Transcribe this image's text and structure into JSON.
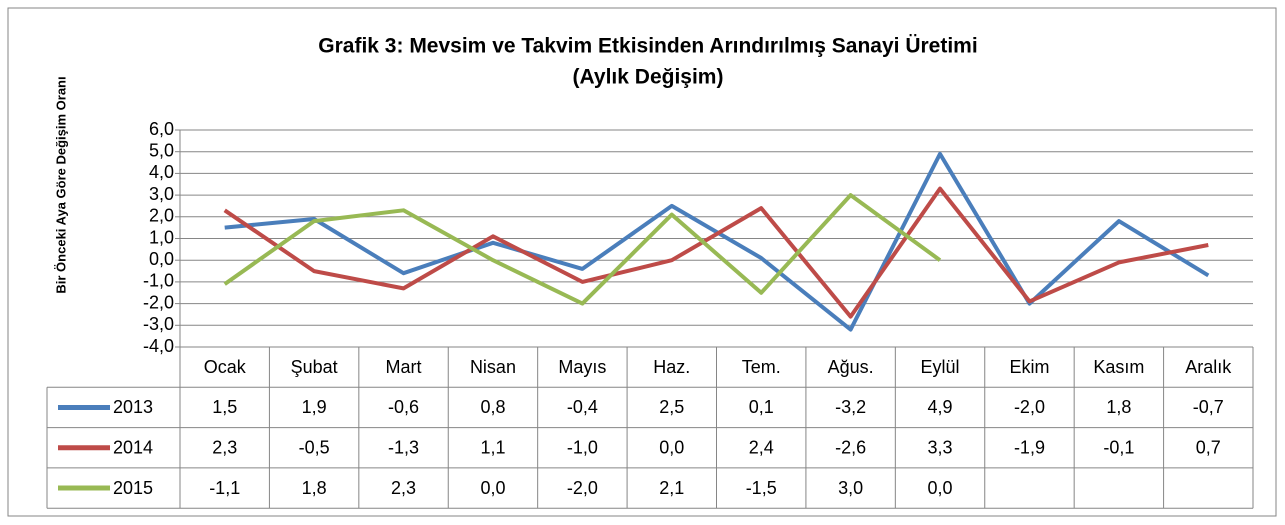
{
  "chart_data": {
    "type": "line",
    "title": "Grafik 3: Mevsim ve Takvim Etkisinden Arındırılmış Sanayi Üretimi",
    "subtitle": "(Aylık Değişim)",
    "y_label": "Bir Önceki Aya Göre Değişim Oranı",
    "categories": [
      "Ocak",
      "Şubat",
      "Mart",
      "Nisan",
      "Mayıs",
      "Haz.",
      "Tem.",
      "Ağus.",
      "Eylül",
      "Ekim",
      "Kasım",
      "Aralık"
    ],
    "series": [
      {
        "name": "2013",
        "color": "#4a7ebb",
        "values": [
          1.5,
          1.9,
          -0.6,
          0.8,
          -0.4,
          2.5,
          0.1,
          -3.2,
          4.9,
          -2.0,
          1.8,
          -0.7
        ],
        "value_labels": [
          "1,5",
          "1,9",
          "-0,6",
          "0,8",
          "-0,4",
          "2,5",
          "0,1",
          "-3,2",
          "4,9",
          "-2,0",
          "1,8",
          "-0,7"
        ]
      },
      {
        "name": "2014",
        "color": "#be4b48",
        "values": [
          2.3,
          -0.5,
          -1.3,
          1.1,
          -1.0,
          0.0,
          2.4,
          -2.6,
          3.3,
          -1.9,
          -0.1,
          0.7
        ],
        "value_labels": [
          "2,3",
          "-0,5",
          "-1,3",
          "1,1",
          "-1,0",
          "0,0",
          "2,4",
          "-2,6",
          "3,3",
          "-1,9",
          "-0,1",
          "0,7"
        ]
      },
      {
        "name": "2015",
        "color": "#98b954",
        "values": [
          -1.1,
          1.8,
          2.3,
          0.0,
          -2.0,
          2.1,
          -1.5,
          3.0,
          0.0,
          null,
          null,
          null
        ],
        "value_labels": [
          "-1,1",
          "1,8",
          "2,3",
          "0,0",
          "-2,0",
          "2,1",
          "-1,5",
          "3,0",
          "0,0",
          null,
          null,
          null
        ]
      }
    ],
    "ylim": [
      -4,
      6
    ],
    "yticks": [
      {
        "value": -4,
        "label": "-4,0"
      },
      {
        "value": -3,
        "label": "-3,0"
      },
      {
        "value": -2,
        "label": "-2,0"
      },
      {
        "value": -1,
        "label": "-1,0"
      },
      {
        "value": 0,
        "label": "0,0"
      },
      {
        "value": 1,
        "label": "1,0"
      },
      {
        "value": 2,
        "label": "2,0"
      },
      {
        "value": 3,
        "label": "3,0"
      },
      {
        "value": 4,
        "label": "4,0"
      },
      {
        "value": 5,
        "label": "5,0"
      },
      {
        "value": 6,
        "label": "6,0"
      }
    ],
    "grid": true
  }
}
